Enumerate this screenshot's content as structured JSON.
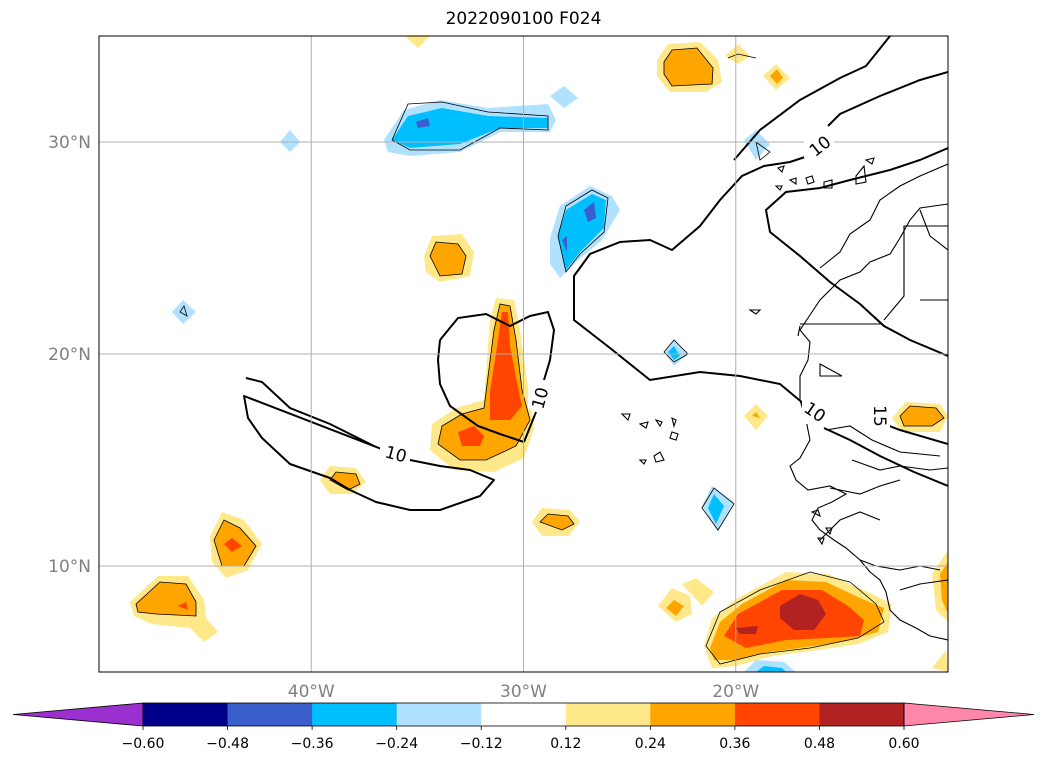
{
  "title": "2022090100 F024",
  "map": {
    "lon_range": [
      -50,
      -10
    ],
    "lat_range": [
      5,
      35
    ],
    "gridlines": true,
    "lat_ticks": [
      {
        "value": 10,
        "label": "10°N"
      },
      {
        "value": 20,
        "label": "20°N"
      },
      {
        "value": 30,
        "label": "30°N"
      }
    ],
    "lon_ticks": [
      {
        "value": -40,
        "label": "40°W"
      },
      {
        "value": -30,
        "label": "30°W"
      },
      {
        "value": -20,
        "label": "20°W"
      }
    ],
    "contour_labels": [
      "10",
      "10",
      "10",
      "10",
      "15"
    ]
  },
  "colorbar": {
    "levels": [
      -0.6,
      -0.48,
      -0.36,
      -0.24,
      -0.12,
      0.12,
      0.24,
      0.36,
      0.48,
      0.6
    ],
    "tick_labels": [
      "−0.60",
      "−0.48",
      "−0.36",
      "−0.24",
      "−0.12",
      "0.12",
      "0.24",
      "0.36",
      "0.48",
      "0.60"
    ],
    "colors": [
      "#9b30d0",
      "#00008b",
      "#3a5fcd",
      "#00bfff",
      "#b0e2ff",
      "#ffffff",
      "#ffe88a",
      "#ffa500",
      "#ff4500",
      "#b22222",
      "#ff88aa"
    ],
    "extend": "both"
  }
}
